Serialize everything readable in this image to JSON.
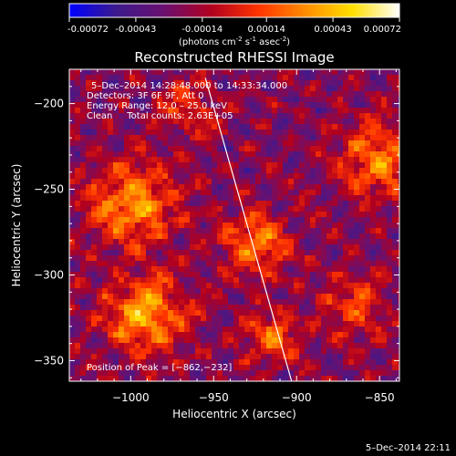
{
  "chart_data": {
    "type": "heatmap",
    "title": "Reconstructed RHESSI Image",
    "colorbar": {
      "ticks": [
        "-0.00072",
        "-0.00043",
        "-0.00014",
        "0.00014",
        "0.00043",
        "0.00072"
      ],
      "range": [
        -0.00072,
        0.00072
      ],
      "units_prefix": "(photons cm",
      "units_exp1": "-2",
      "units_mid": " s",
      "units_exp2": "-1",
      "units_mid2": " asec",
      "units_exp3": "-2",
      "units_suffix": ")",
      "colormap": [
        "#0000ff",
        "#3c1a8c",
        "#6a1070",
        "#b00020",
        "#ff3300",
        "#ff8c00",
        "#ffe000",
        "#ffffff"
      ]
    },
    "xlabel": "Heliocentric X (arcsec)",
    "ylabel": "Heliocentric Y (arcsec)",
    "xlim": [
      -1037,
      -838
    ],
    "ylim": [
      -362,
      -180
    ],
    "xticks": [
      -1000,
      -950,
      -900,
      -850
    ],
    "xtick_labels": [
      "−1000",
      "−950",
      "−900",
      "−850"
    ],
    "yticks": [
      -350,
      -300,
      -250,
      -200
    ],
    "ytick_labels": [
      "−350",
      "−300",
      "−250",
      "−200"
    ],
    "limb_line": {
      "x": [
        -955,
        -903
      ],
      "y": [
        -185,
        -362
      ]
    },
    "annotations": {
      "time": "5–Dec–2014 14:28:48.000 to 14:33:34.000",
      "detectors": "Detectors: 3F 6F 9F, Att 0",
      "energy": "Energy Range: 12.0 – 25.0 keV",
      "clean": "Clean     Total counts: 2.63E+05",
      "peak": "Position of Peak = [−862,−232]"
    }
  },
  "footer": {
    "timestamp": "5–Dec–2014 22:11"
  }
}
